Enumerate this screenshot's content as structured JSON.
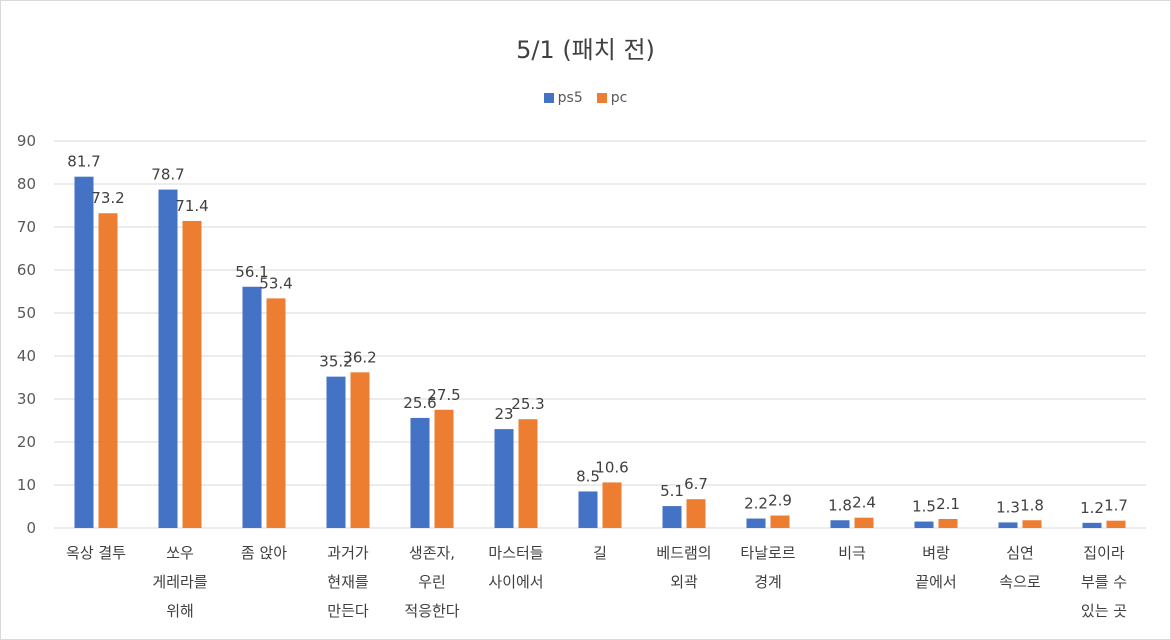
{
  "chart_data": {
    "type": "bar",
    "title": "5/1 (패치 전)",
    "categories": [
      [
        "옥상 결투"
      ],
      [
        "쏘우",
        "게레라를",
        "위해"
      ],
      [
        "좀 앉아"
      ],
      [
        "과거가",
        "현재를",
        "만든다"
      ],
      [
        "생존자,",
        "우린",
        "적응한다"
      ],
      [
        "마스터들",
        "사이에서"
      ],
      [
        "길"
      ],
      [
        "베드램의",
        "외곽"
      ],
      [
        "타날로르",
        "경계"
      ],
      [
        "비극"
      ],
      [
        "벼랑",
        "끝에서"
      ],
      [
        "심연",
        "속으로"
      ],
      [
        "집이라",
        "부를 수",
        "있는 곳"
      ]
    ],
    "series": [
      {
        "name": "ps5",
        "color": "#4472c4",
        "values": [
          81.7,
          78.7,
          56.1,
          35.2,
          25.6,
          23,
          8.5,
          5.1,
          2.2,
          1.8,
          1.5,
          1.3,
          1.2
        ]
      },
      {
        "name": "pc",
        "color": "#ed7d31",
        "values": [
          73.2,
          71.4,
          53.4,
          36.2,
          27.5,
          25.3,
          10.6,
          6.7,
          2.9,
          2.4,
          2.1,
          1.8,
          1.7
        ]
      }
    ],
    "ylim": [
      0,
      90
    ],
    "yticks": [
      0,
      10,
      20,
      30,
      40,
      50,
      60,
      70,
      80,
      90
    ],
    "grid": true,
    "legend_position": "top-center"
  }
}
